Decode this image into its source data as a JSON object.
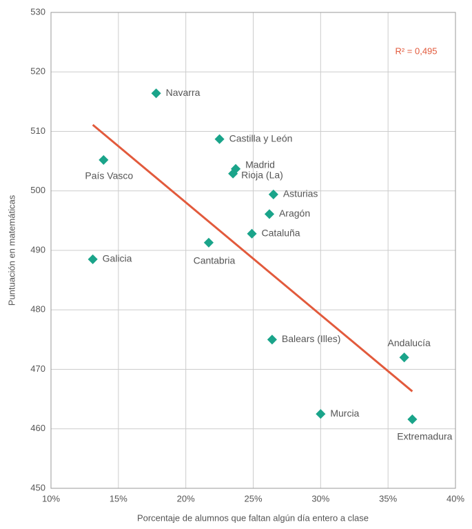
{
  "chart_data": {
    "type": "scatter",
    "xlabel": "Porcentaje de alumnos que faltan algún día entero a clase",
    "ylabel": "Puntuación en matemáticas",
    "annotation": "R² = 0,495",
    "point_color": "#1aa48a",
    "trend_color": "#e25a3c",
    "grid": true,
    "xlim": [
      10,
      40
    ],
    "ylim": [
      450,
      530
    ],
    "xticks": [
      {
        "value": 10,
        "label": "10%"
      },
      {
        "value": 15,
        "label": "15%"
      },
      {
        "value": 20,
        "label": "20%"
      },
      {
        "value": 25,
        "label": "25%"
      },
      {
        "value": 30,
        "label": "30%"
      },
      {
        "value": 35,
        "label": "35%"
      },
      {
        "value": 40,
        "label": "40%"
      }
    ],
    "yticks": [
      450,
      460,
      470,
      480,
      490,
      500,
      510,
      520,
      530
    ],
    "labels": [
      "Navarra",
      "País Vasco",
      "Castilla y León",
      "Madrid",
      "Rioja (La)",
      "Asturias",
      "Aragón",
      "Cataluña",
      "Cantabria",
      "Galicia",
      "Balears (Illes)",
      "Andalucía",
      "Murcia",
      "Extremadura"
    ],
    "x": [
      17.8,
      13.9,
      22.5,
      23.7,
      23.5,
      26.5,
      26.2,
      24.9,
      21.7,
      13.1,
      26.4,
      36.2,
      30.0,
      36.8
    ],
    "y": [
      516.4,
      505.2,
      508.7,
      503.7,
      502.9,
      499.4,
      496.1,
      492.8,
      491.3,
      488.5,
      475.0,
      472.0,
      462.5,
      461.6
    ],
    "trendline": {
      "x": [
        13.1,
        36.8
      ],
      "y": [
        511.1,
        466.3
      ]
    }
  }
}
